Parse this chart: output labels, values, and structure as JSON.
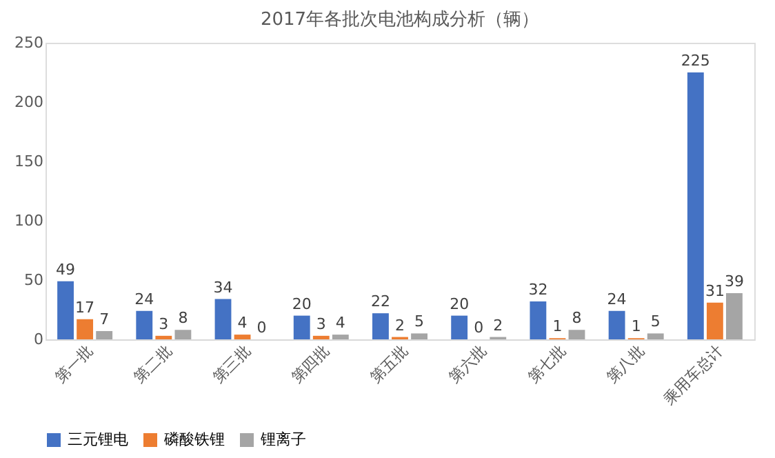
{
  "chart_data": {
    "type": "bar",
    "title": "2017年各批次电池构成分析（辆）",
    "categories": [
      "第一批",
      "第二批",
      "第三批",
      "第四批",
      "第五批",
      "第六批",
      "第七批",
      "第八批",
      "乘用车总计"
    ],
    "series": [
      {
        "name": "三元锂电",
        "color": "#4472c4",
        "values": [
          49,
          24,
          34,
          20,
          22,
          20,
          32,
          24,
          225
        ]
      },
      {
        "name": "磷酸铁锂",
        "color": "#ed7d31",
        "values": [
          17,
          3,
          4,
          3,
          2,
          0,
          1,
          1,
          31
        ]
      },
      {
        "name": "锂离子",
        "color": "#a5a5a5",
        "values": [
          7,
          8,
          0,
          4,
          5,
          2,
          8,
          5,
          39
        ]
      }
    ],
    "ylim": [
      0,
      250
    ],
    "yticks": [
      0,
      50,
      100,
      150,
      200,
      250
    ],
    "grid": false,
    "legend": "bottom",
    "data_labels": true
  }
}
